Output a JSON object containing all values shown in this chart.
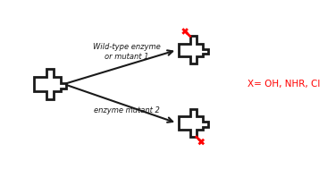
{
  "bg_color": "#ffffff",
  "line_color": "#1a1a1a",
  "red_color": "#ff0000",
  "label_top": "Wild-type enzyme\nor mutant 1",
  "label_bottom": "enzyme mutant 2",
  "legend_text": "X= OH, NHR, Cl",
  "lw": 2.0,
  "fig_w": 3.66,
  "fig_h": 1.89,
  "dpi": 100
}
